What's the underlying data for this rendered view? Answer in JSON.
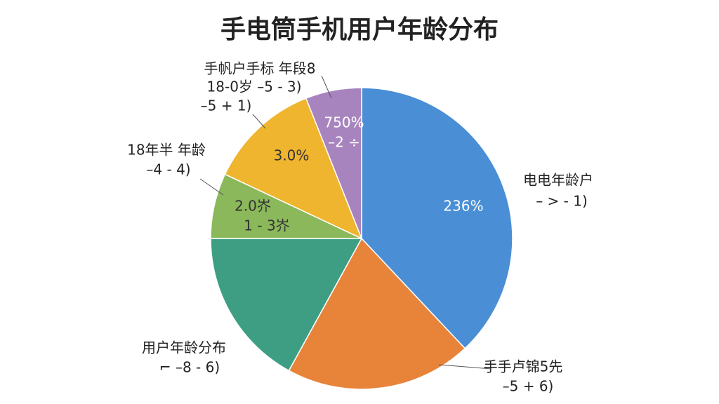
{
  "chart_data": {
    "type": "pie",
    "title": "手电筒手机用户年龄分布",
    "categories": [
      "电电年龄户",
      "手手卢锦5先",
      "用户年龄分布",
      "18年半  年龄",
      "18-0岁  –5 - 3)",
      "手帆户手标  年段8"
    ],
    "category_notes": [
      [
        "– > - 1)"
      ],
      [
        "–5 + 6)"
      ],
      [
        "⌐ –8 - 6)"
      ],
      [
        "–4 - 4)"
      ],
      [
        "–5 + 1)"
      ],
      null
    ],
    "values": [
      38,
      20,
      17,
      7,
      12,
      6
    ],
    "colors": [
      "#4a8fd6",
      "#e8843a",
      "#3e9e83",
      "#8ab85a",
      "#f0b52e",
      "#a884bf"
    ],
    "inner_labels": [
      [
        "236%"
      ],
      null,
      null,
      [
        "2.0岕",
        "1 - 3岕"
      ],
      [
        "3.0%"
      ],
      [
        "750%",
        "–2 ÷"
      ]
    ]
  }
}
